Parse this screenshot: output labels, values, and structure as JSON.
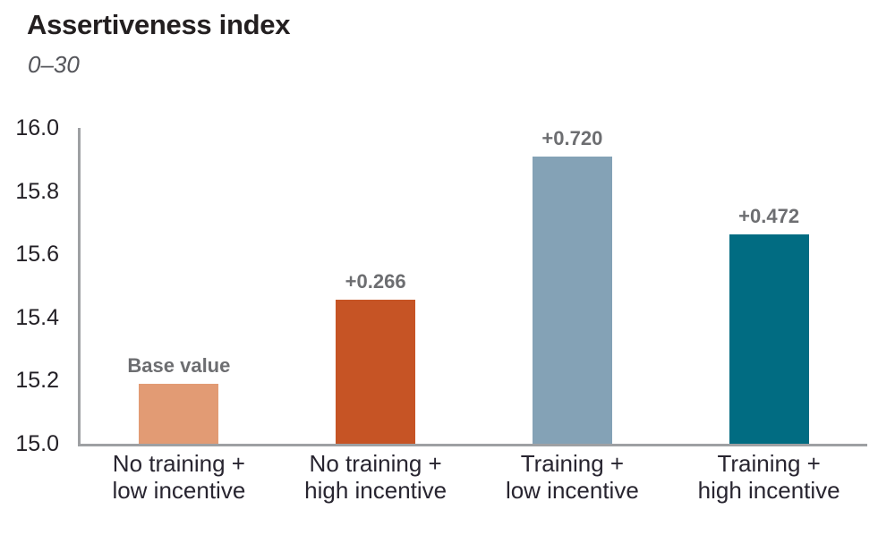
{
  "header": {
    "title": "Assertiveness index",
    "subtitle": "0–30"
  },
  "chart_data": {
    "type": "bar",
    "title": "Assertiveness index",
    "subtitle": "0–30",
    "categories": [
      [
        "No training +",
        "low incentive"
      ],
      [
        "No training +",
        "high incentive"
      ],
      [
        "Training +",
        "low incentive"
      ],
      [
        "Training +",
        "high incentive"
      ]
    ],
    "values": [
      15.19,
      15.456,
      15.91,
      15.662
    ],
    "base_value": 15.19,
    "deltas": [
      0,
      0.266,
      0.72,
      0.472
    ],
    "bar_value_labels": [
      "Base value",
      "+0.266",
      "+0.720",
      "+0.472"
    ],
    "bar_colors": [
      "#e29b74",
      "#c65425",
      "#84a2b6",
      "#016c82"
    ],
    "ylim": [
      15.0,
      16.0
    ],
    "ytick_labels": [
      "16.0",
      "15.8",
      "15.6",
      "15.4",
      "15.2",
      "15.0"
    ],
    "xlabel": "",
    "ylabel": "",
    "grid": false,
    "legend": false
  },
  "colors": {
    "background": "#ffffff",
    "title": "#231f20",
    "subtitle": "#55565b",
    "axis": "#9ea0a3",
    "tick_label": "#232026",
    "value_label": "#6d6e71",
    "category_label": "#282530"
  }
}
